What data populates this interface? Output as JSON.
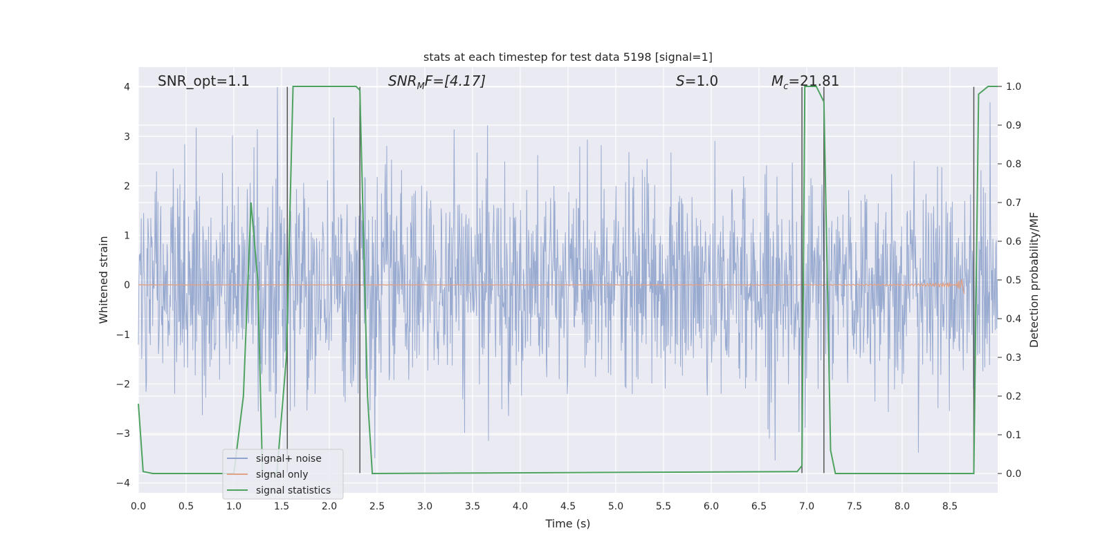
{
  "chart_data": {
    "type": "line",
    "title": "stats at each timestep for test data 5198 [signal=1]",
    "xlabel": "Time (s)",
    "ylabel": "Whitened strain",
    "y2label": "Detection probability/MF",
    "xlim": [
      0.0,
      9.0
    ],
    "ylim": [
      -4.2,
      4.4
    ],
    "y2lim": [
      -0.05,
      1.05
    ],
    "xticks": [
      "0.0",
      "0.5",
      "1.0",
      "1.5",
      "2.0",
      "2.5",
      "3.0",
      "3.5",
      "4.0",
      "4.5",
      "5.0",
      "5.5",
      "6.0",
      "6.5",
      "7.0",
      "7.5",
      "8.0",
      "8.5"
    ],
    "xtick_values": [
      0.0,
      0.5,
      1.0,
      1.5,
      2.0,
      2.5,
      3.0,
      3.5,
      4.0,
      4.5,
      5.0,
      5.5,
      6.0,
      6.5,
      7.0,
      7.5,
      8.0,
      8.5
    ],
    "yticks": [
      "4",
      "3",
      "2",
      "1",
      "0",
      "−1",
      "−2",
      "−3",
      "−4"
    ],
    "ytick_values": [
      4,
      3,
      2,
      1,
      0,
      -1,
      -2,
      -3,
      -4
    ],
    "y2ticks": [
      "1.0",
      "0.9",
      "0.8",
      "0.7",
      "0.6",
      "0.5",
      "0.4",
      "0.3",
      "0.2",
      "0.1",
      "0.0"
    ],
    "y2tick_values": [
      1.0,
      0.9,
      0.8,
      0.7,
      0.6,
      0.5,
      0.4,
      0.3,
      0.2,
      0.1,
      0.0
    ],
    "grid": true,
    "legend_position": "lower-left",
    "annotations": {
      "snr_opt": "SNR_opt=1.1",
      "snr_mf_main": "SNR",
      "snr_mf_sub": "M",
      "snr_mf_rest": "F=[4.17]",
      "s_main": "S",
      "s_rest": "=1.0",
      "mc_main": "M",
      "mc_sub": "c",
      "mc_rest": "=21.81"
    },
    "series": [
      {
        "name": "signal+ noise",
        "color": "#8fa3cc",
        "band_std": 1.0,
        "band_peak_max": 4.0,
        "band_peak_min": -3.9
      },
      {
        "name": "signal only",
        "color": "#e0a186",
        "chirp_end_time": 8.65,
        "chirp_peak_amplitude": 0.22
      },
      {
        "name": "signal statistics",
        "color": "#4ea260",
        "axis": "right",
        "x": [
          0.0,
          0.05,
          0.15,
          1.0,
          1.1,
          1.18,
          1.25,
          1.3,
          1.45,
          1.55,
          1.62,
          2.28,
          2.32,
          2.4,
          2.45,
          6.9,
          6.95,
          6.98,
          7.1,
          7.18,
          7.25,
          7.3,
          8.75,
          8.8,
          8.85,
          8.9,
          9.0
        ],
        "y": [
          0.18,
          0.005,
          0.0,
          0.0,
          0.2,
          0.7,
          0.5,
          0.0,
          0.0,
          0.3,
          1.0,
          1.0,
          0.99,
          0.2,
          0.0,
          0.005,
          0.02,
          1.0,
          1.0,
          0.96,
          0.06,
          0.0,
          0.0,
          0.98,
          0.99,
          1.0,
          1.0
        ]
      }
    ],
    "vertical_lines": [
      1.56,
      2.32,
      6.95,
      7.18,
      8.75
    ],
    "vertical_line_color": "#555555"
  }
}
